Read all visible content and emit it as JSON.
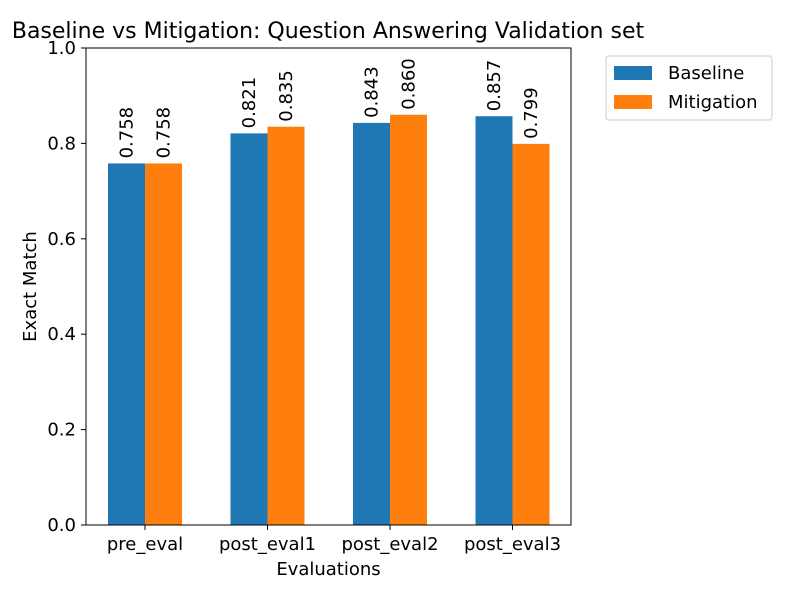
{
  "chart_data": {
    "type": "bar",
    "title": "Baseline vs Mitigation: Question Answering Validation set",
    "xlabel": "Evaluations",
    "ylabel": "Exact Match",
    "categories": [
      "pre_eval",
      "post_eval1",
      "post_eval2",
      "post_eval3"
    ],
    "series": [
      {
        "name": "Baseline",
        "color": "#1f77b4",
        "values": [
          0.758,
          0.821,
          0.843,
          0.857
        ],
        "labels": [
          "0.758",
          "0.821",
          "0.843",
          "0.857"
        ]
      },
      {
        "name": "Mitigation",
        "color": "#ff7f0e",
        "values": [
          0.758,
          0.835,
          0.86,
          0.799
        ],
        "labels": [
          "0.758",
          "0.835",
          "0.860",
          "0.799"
        ]
      }
    ],
    "ylim": [
      0,
      1.0
    ],
    "yticks": [
      0.0,
      0.2,
      0.4,
      0.6,
      0.8,
      1.0
    ],
    "ytick_labels": [
      "0.0",
      "0.2",
      "0.4",
      "0.6",
      "0.8",
      "1.0"
    ],
    "grid": false,
    "legend_position": "outside-top-right"
  }
}
